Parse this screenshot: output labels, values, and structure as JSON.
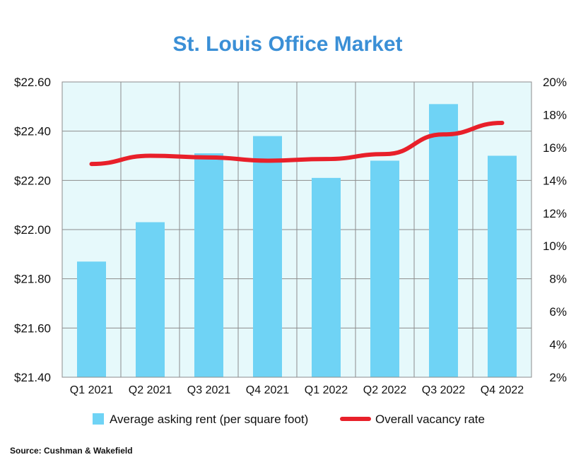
{
  "chart_data": {
    "type": "bar",
    "title": "St. Louis Office Market",
    "categories": [
      "Q1 2021",
      "Q2 2021",
      "Q3 2021",
      "Q4 2021",
      "Q1 2022",
      "Q2 2022",
      "Q3 2022",
      "Q4 2022"
    ],
    "series": [
      {
        "name": "Average asking rent (per square foot)",
        "type": "bar",
        "axis": "left",
        "values": [
          21.87,
          22.03,
          22.31,
          22.38,
          22.21,
          22.28,
          22.51,
          22.3
        ]
      },
      {
        "name": "Overall vacancy rate",
        "type": "line",
        "axis": "right",
        "values": [
          15.0,
          15.5,
          15.4,
          15.2,
          15.3,
          15.6,
          16.8,
          17.5
        ]
      }
    ],
    "y_left": {
      "ylim": [
        21.4,
        22.6
      ],
      "ticks": [
        22.6,
        22.4,
        22.2,
        22.0,
        21.8,
        21.6,
        21.4
      ],
      "tick_labels": [
        "$22.60",
        "$22.40",
        "$22.20",
        "$22.00",
        "$21.80",
        "$21.60",
        "$21.40"
      ]
    },
    "y_right": {
      "ylim": [
        2,
        20
      ],
      "ticks": [
        20,
        18,
        16,
        14,
        12,
        10,
        8,
        6,
        4,
        2
      ],
      "tick_labels": [
        "20%",
        "18%",
        "16%",
        "14%",
        "12%",
        "10%",
        "8%",
        "6%",
        "4%",
        "2%"
      ]
    },
    "xlabel": "",
    "ylabel": "",
    "grid": true,
    "legend": "bottom",
    "source": "Source: Cushman & Wakefield",
    "colors": {
      "title": "#3a8fd6",
      "bar": "#6fd3f5",
      "line": "#e8202a",
      "plot_background": "#e6f9fb",
      "grid": "#8c8c8c"
    }
  }
}
